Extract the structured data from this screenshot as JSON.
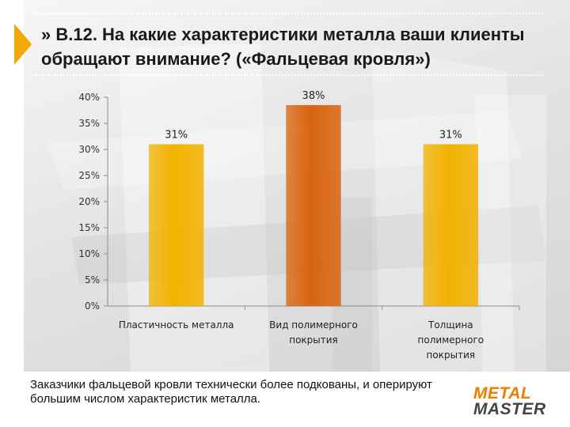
{
  "slide": {
    "title": "» В.12. На какие характеристики металла ваши клиенты обращают внимание? («Фальцевая кровля»)",
    "footer_text": "Заказчики фальцевой кровли технически более подкованы, и оперируют большим числом характеристик металла.",
    "logo": {
      "line1": "METAL",
      "line2": "MASTER"
    }
  },
  "colors": {
    "accent": "#f5a800",
    "bar_yellow": "#f2b200",
    "bar_orange": "#d9640e"
  },
  "chart_data": {
    "type": "bar",
    "title": "",
    "xlabel": "",
    "ylabel": "",
    "categories": [
      [
        "Пластичность металла"
      ],
      [
        "Вид полимерного",
        "покрытия"
      ],
      [
        "Толщина",
        "полимерного",
        "покрытия"
      ]
    ],
    "values": [
      31,
      38.5,
      31
    ],
    "data_labels": [
      "31%",
      "38%",
      "31%"
    ],
    "bar_colors": [
      "#f2b200",
      "#d9640e",
      "#f2b200"
    ],
    "ylim": [
      0,
      40
    ],
    "yticks": [
      0,
      5,
      10,
      15,
      20,
      25,
      30,
      35,
      40
    ],
    "ytick_labels": [
      "0%",
      "5%",
      "10%",
      "15%",
      "20%",
      "25%",
      "30%",
      "35%",
      "40%"
    ],
    "grid": false,
    "legend": "none"
  }
}
